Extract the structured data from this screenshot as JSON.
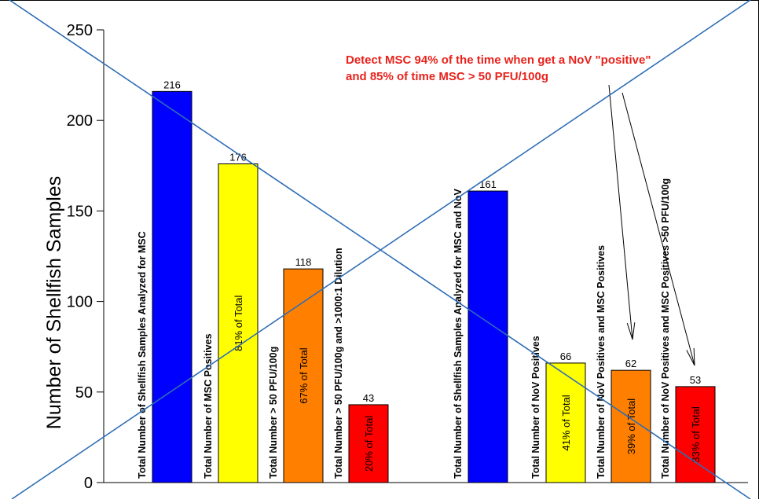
{
  "slide": {
    "annotation_line1": "Detect MSC 94% of the time when get a NoV \"positive\"",
    "annotation_line2": "and 85% of time MSC > 50 PFU/100g",
    "annotation_color": "#e8231c"
  },
  "chart_data": {
    "type": "bar",
    "title": "",
    "xlabel": "",
    "ylabel": "Number of Shellfish Samples",
    "ylim": [
      0,
      250
    ],
    "yticks": [
      0,
      50,
      100,
      150,
      200,
      250
    ],
    "grid": false,
    "bars": [
      {
        "label": "Total Number of Shellfish Samples Analyzed for MSC",
        "value": 216,
        "value_label": "216",
        "pct_label": "",
        "color": "#0000ff"
      },
      {
        "label": "Total Number of MSC Positives",
        "value": 176,
        "value_label": "176",
        "pct_label": "81% of Total",
        "color": "#ffff00"
      },
      {
        "label": "Total Number > 50 PFU/100g",
        "value": 118,
        "value_label": "118",
        "pct_label": "67% of Total",
        "color": "#ff8000"
      },
      {
        "label": "Total Number > 50 PFU/100g and >1000:1 Dilution",
        "value": 43,
        "value_label": "43",
        "pct_label": "20% of Total",
        "color": "#ff0000"
      },
      {
        "label": "Total Number of Shellfish Samples Analyzed for MSC and NoV",
        "value": 161,
        "value_label": "161",
        "pct_label": "",
        "color": "#0000ff"
      },
      {
        "label": "Total Number of NoV Positives",
        "value": 66,
        "value_label": "66",
        "pct_label": "41% of Total",
        "color": "#ffff00"
      },
      {
        "label": "Total Number of NoV Positives and MSC Positives",
        "value": 62,
        "value_label": "62",
        "pct_label": "39% of Total",
        "color": "#ff8000"
      },
      {
        "label": "Total Number of NoV Positives and MSC Positives >50 PFU/100g",
        "value": 53,
        "value_label": "53",
        "pct_label": "33% of Total",
        "color": "#ff0000"
      }
    ]
  }
}
